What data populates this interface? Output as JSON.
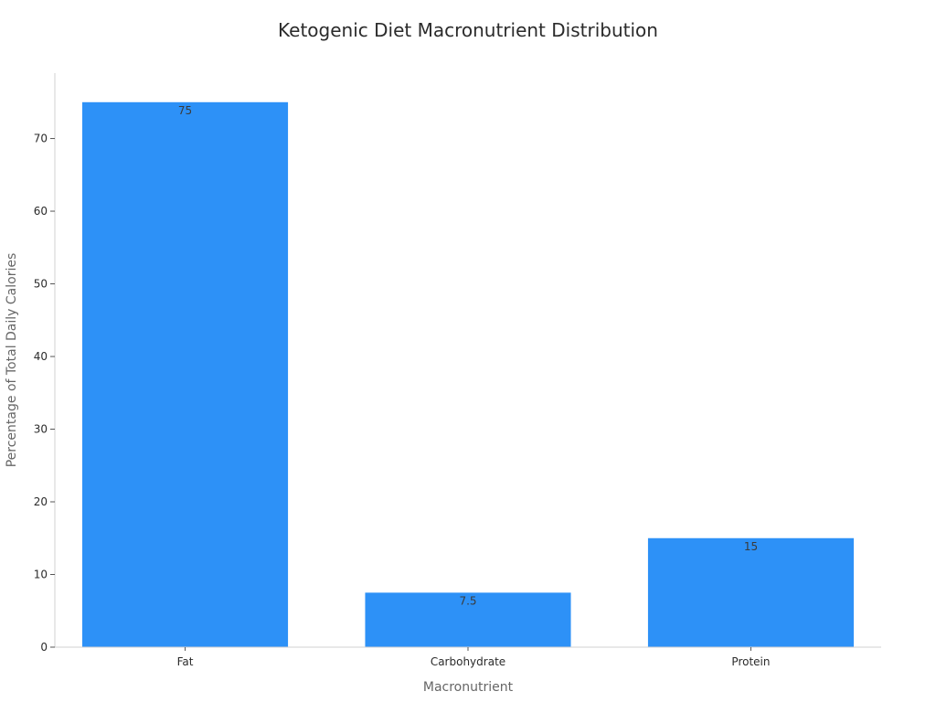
{
  "chart_data": {
    "type": "bar",
    "title": "Ketogenic Diet Macronutrient Distribution",
    "xlabel": "Macronutrient",
    "ylabel": "Percentage of Total Daily Calories",
    "categories": [
      "Fat",
      "Carbohydrate",
      "Protein"
    ],
    "values": [
      75,
      7.5,
      15
    ],
    "data_labels": [
      "75",
      "7.5",
      "15"
    ],
    "ylim": [
      0,
      79
    ],
    "yticks": [
      0,
      10,
      20,
      30,
      40,
      50,
      60,
      70
    ],
    "grid": false,
    "legend": "none",
    "bar_color": "#2d91f7"
  }
}
